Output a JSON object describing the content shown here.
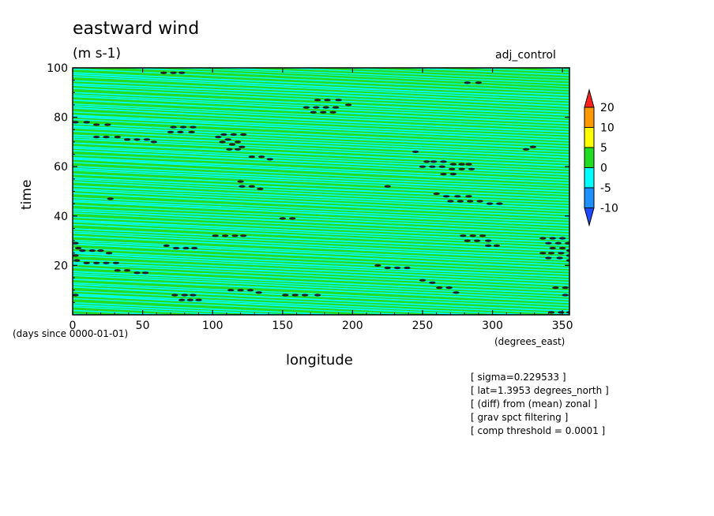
{
  "title": "eastward wind",
  "units": "(m s-1)",
  "run_label": "adj_control",
  "chart_data": {
    "type": "heatmap",
    "title": "eastward wind",
    "xlabel": "longitude",
    "x_units": "(degrees_east)",
    "ylabel": "time",
    "y_units": "(days since 0000-01-01)",
    "xlim": [
      0,
      355
    ],
    "ylim": [
      0,
      100
    ],
    "x_ticks": [
      0,
      50,
      100,
      150,
      200,
      250,
      300,
      350
    ],
    "x_tick_labels": [
      "0",
      "50",
      "100",
      "150",
      "200",
      "250",
      "300",
      "350"
    ],
    "y_ticks": [
      20,
      40,
      60,
      80,
      100
    ],
    "y_tick_labels": [
      "20",
      "40",
      "60",
      "80",
      "100"
    ],
    "colorbar": {
      "labels": [
        "20",
        "10",
        "5",
        "0",
        "-5",
        "-10"
      ],
      "colors": [
        "#ff2020",
        "#ff9900",
        "#ffff00",
        "#22dd22",
        "#00ffff",
        "#1e90ff",
        "#1e4bff"
      ]
    },
    "field_colors": {
      "positive": "#22dd22",
      "negative": "#00ffff",
      "blob": "#222222"
    }
  },
  "notes": [
    "[ sigma=0.229533 ]",
    "[ lat=1.3953 degrees_north ]",
    "[ (diff) from (mean) zonal ]",
    "[ grav spct filtering ]",
    "[ comp threshold = 0.0001 ]"
  ]
}
